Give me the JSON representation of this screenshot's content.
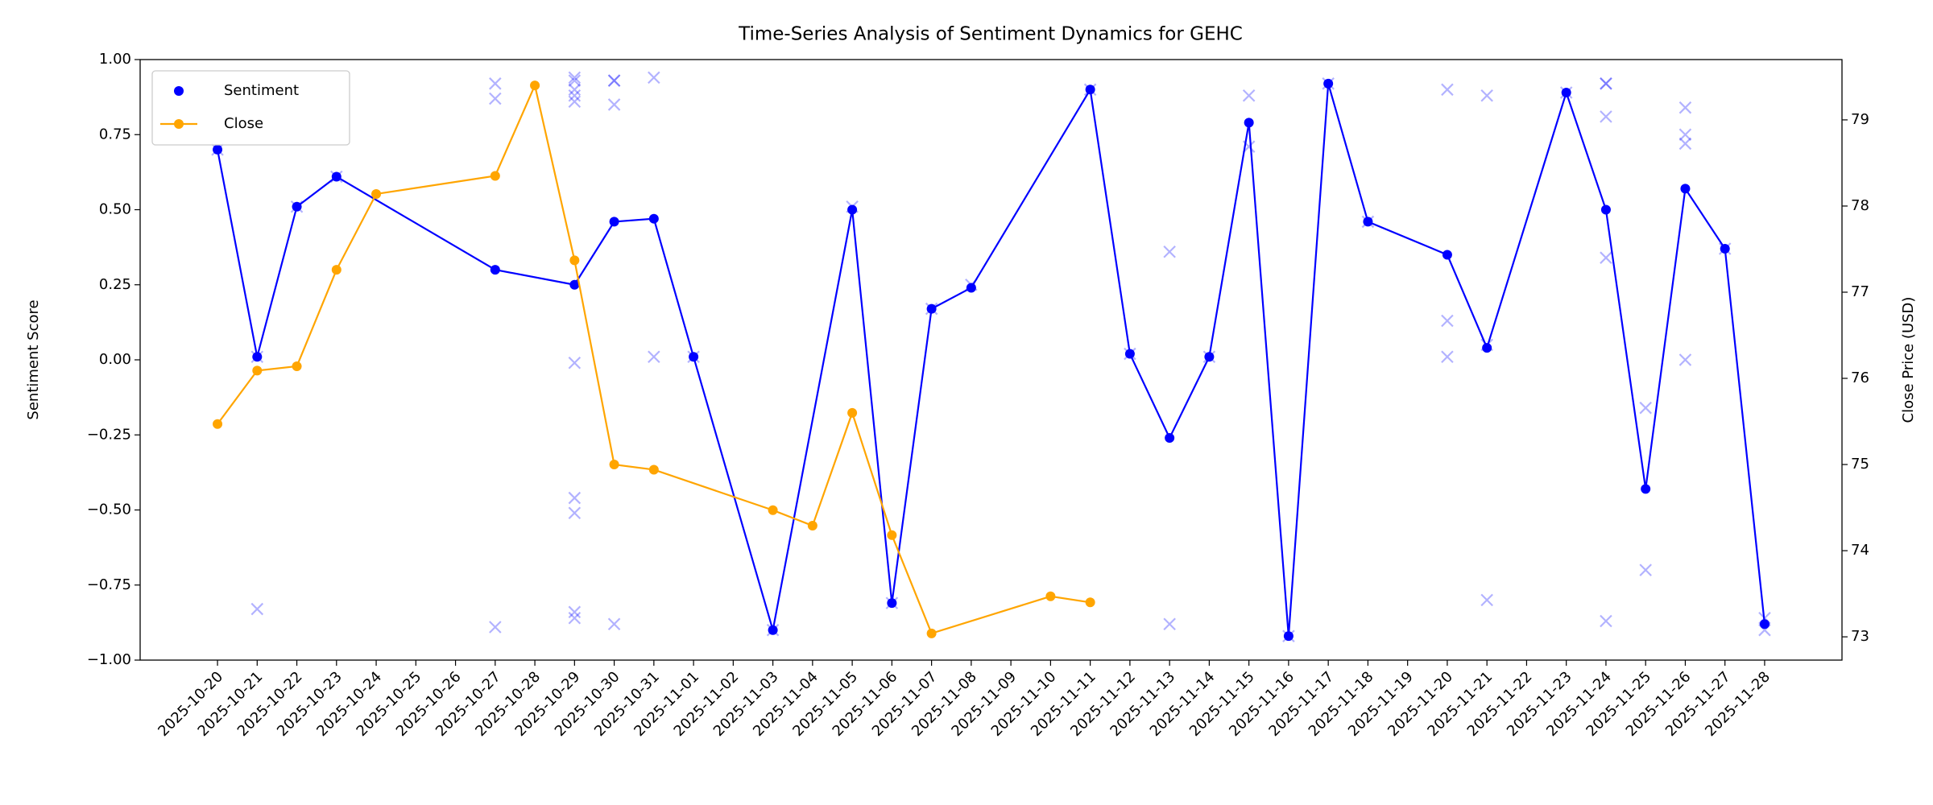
{
  "chart_data": {
    "type": "line",
    "title": "Time-Series Analysis of Sentiment Dynamics for GEHC",
    "ylabel": "Sentiment Score",
    "y2label": "Close Price (USD)",
    "xlim": [
      "2025-10-18T01:12",
      "2025-11-29T22:48"
    ],
    "xticks": [
      "2025-10-20",
      "2025-10-21",
      "2025-10-22",
      "2025-10-23",
      "2025-10-24",
      "2025-10-25",
      "2025-10-26",
      "2025-10-27",
      "2025-10-28",
      "2025-10-29",
      "2025-10-30",
      "2025-10-31",
      "2025-11-01",
      "2025-11-02",
      "2025-11-03",
      "2025-11-04",
      "2025-11-05",
      "2025-11-06",
      "2025-11-07",
      "2025-11-08",
      "2025-11-09",
      "2025-11-10",
      "2025-11-11",
      "2025-11-12",
      "2025-11-13",
      "2025-11-14",
      "2025-11-15",
      "2025-11-16",
      "2025-11-17",
      "2025-11-18",
      "2025-11-19",
      "2025-11-20",
      "2025-11-21",
      "2025-11-22",
      "2025-11-23",
      "2025-11-24",
      "2025-11-25",
      "2025-11-26",
      "2025-11-27",
      "2025-11-28"
    ],
    "ylim": [
      -1,
      1
    ],
    "yticks": [
      {
        "value": -1,
        "label": "−1.00"
      },
      {
        "value": -0.75,
        "label": "−0.75"
      },
      {
        "value": -0.5,
        "label": "−0.50"
      },
      {
        "value": -0.25,
        "label": "−0.25"
      },
      {
        "value": 0,
        "label": "0.00"
      },
      {
        "value": 0.25,
        "label": "0.25"
      },
      {
        "value": 0.5,
        "label": "0.50"
      },
      {
        "value": 0.75,
        "label": "0.75"
      },
      {
        "value": 1,
        "label": "1.00"
      }
    ],
    "y2lim": [
      72.73,
      79.7
    ],
    "y2ticks": [
      73,
      74,
      75,
      76,
      77,
      78,
      79
    ],
    "legend": "upper left",
    "series": [
      {
        "color": "#0000ff",
        "opacity": 0.3,
        "marker": "x",
        "x": [
          "2025-10-20",
          "2025-10-21",
          "2025-10-21",
          "2025-10-22",
          "2025-10-23",
          "2025-10-27",
          "2025-10-27",
          "2025-10-27",
          "2025-10-29",
          "2025-10-29",
          "2025-10-29",
          "2025-10-29",
          "2025-10-29",
          "2025-10-29",
          "2025-10-29",
          "2025-10-29",
          "2025-10-29",
          "2025-10-29",
          "2025-10-30",
          "2025-10-30",
          "2025-10-30",
          "2025-10-30",
          "2025-10-31",
          "2025-10-31",
          "2025-11-01",
          "2025-11-03",
          "2025-11-05",
          "2025-11-06",
          "2025-11-07",
          "2025-11-08",
          "2025-11-11",
          "2025-11-12",
          "2025-11-13",
          "2025-11-13",
          "2025-11-14",
          "2025-11-15",
          "2025-11-15",
          "2025-11-16",
          "2025-11-17",
          "2025-11-18",
          "2025-11-20",
          "2025-11-20",
          "2025-11-20",
          "2025-11-21",
          "2025-11-21",
          "2025-11-21",
          "2025-11-23",
          "2025-11-24",
          "2025-11-24",
          "2025-11-24",
          "2025-11-24",
          "2025-11-24",
          "2025-11-25",
          "2025-11-25",
          "2025-11-26",
          "2025-11-26",
          "2025-11-26",
          "2025-11-26",
          "2025-11-27",
          "2025-11-28",
          "2025-11-28"
        ],
        "values": [
          0.7,
          0.01,
          -0.83,
          0.51,
          0.61,
          0.92,
          0.87,
          -0.89,
          0.94,
          0.93,
          0.9,
          0.88,
          0.86,
          -0.01,
          -0.46,
          -0.51,
          -0.84,
          -0.86,
          0.93,
          0.93,
          0.85,
          -0.88,
          0.94,
          0.01,
          0.01,
          -0.9,
          0.51,
          -0.81,
          0.17,
          0.25,
          0.9,
          0.02,
          0.36,
          -0.88,
          0.01,
          0.88,
          0.71,
          -0.92,
          0.92,
          0.46,
          0.9,
          0.13,
          0.01,
          0.88,
          0.05,
          -0.8,
          0.89,
          0.92,
          0.92,
          0.81,
          0.34,
          -0.87,
          -0.16,
          -0.7,
          0.84,
          0.75,
          0.72,
          0.0,
          0.37,
          -0.86,
          -0.9
        ]
      },
      {
        "name": "Sentiment",
        "color": "#0000ff",
        "marker": "o",
        "legend_style": "marker",
        "x": [
          "2025-10-20",
          "2025-10-21",
          "2025-10-22",
          "2025-10-23",
          "2025-10-27",
          "2025-10-29",
          "2025-10-30",
          "2025-10-31",
          "2025-11-01",
          "2025-11-03",
          "2025-11-05",
          "2025-11-06",
          "2025-11-07",
          "2025-11-08",
          "2025-11-11",
          "2025-11-12",
          "2025-11-13",
          "2025-11-14",
          "2025-11-15",
          "2025-11-16",
          "2025-11-17",
          "2025-11-18",
          "2025-11-20",
          "2025-11-21",
          "2025-11-23",
          "2025-11-24",
          "2025-11-25",
          "2025-11-26",
          "2025-11-27",
          "2025-11-28"
        ],
        "values": [
          0.7,
          0.01,
          0.51,
          0.61,
          0.3,
          0.25,
          0.46,
          0.47,
          0.01,
          -0.9,
          0.5,
          -0.81,
          0.17,
          0.24,
          0.9,
          0.02,
          -0.26,
          0.01,
          0.79,
          -0.92,
          0.92,
          0.46,
          0.35,
          0.04,
          0.89,
          0.5,
          -0.43,
          0.57,
          0.37,
          -0.88
        ]
      },
      {
        "name": "Close",
        "color": "#ffa500",
        "marker": "o",
        "axis": "y2",
        "legend_style": "line",
        "x": [
          "2025-10-20",
          "2025-10-21",
          "2025-10-22",
          "2025-10-23",
          "2025-10-24",
          "2025-10-27",
          "2025-10-28",
          "2025-10-29",
          "2025-10-30",
          "2025-10-31",
          "2025-11-03",
          "2025-11-04",
          "2025-11-05",
          "2025-11-06",
          "2025-11-07",
          "2025-11-10",
          "2025-11-11"
        ],
        "values": [
          75.47,
          76.09,
          76.14,
          77.26,
          78.14,
          78.35,
          79.4,
          77.37,
          75.0,
          74.94,
          74.47,
          74.29,
          75.6,
          74.18,
          73.04,
          73.47,
          73.4
        ]
      }
    ]
  }
}
